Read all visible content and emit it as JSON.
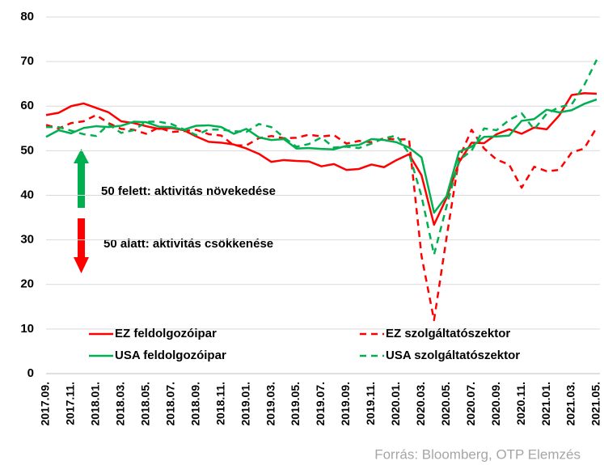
{
  "chart_data": {
    "type": "line",
    "categories": [
      "2017.09.",
      null,
      "2017.11.",
      null,
      "2018.01.",
      null,
      "2018.03.",
      null,
      "2018.05.",
      null,
      "2018.07.",
      null,
      "2018.09.",
      null,
      "2018.11.",
      null,
      "2019.01.",
      null,
      "2019.03.",
      null,
      "2019.05.",
      null,
      "2019.07.",
      null,
      "2019.09.",
      null,
      "2019.11.",
      null,
      "2020.01.",
      null,
      "2020.03.",
      null,
      "2020.05.",
      null,
      "2020.07.",
      null,
      "2020.09.",
      null,
      "2020.11.",
      null,
      "2021.01.",
      null,
      "2021.03.",
      null,
      "2021.05."
    ],
    "series": [
      {
        "name": "EZ feldolgozóipar",
        "color": "#ff0000",
        "dashed": false,
        "values": [
          58,
          58.5,
          60,
          60.6,
          59.6,
          58.6,
          56.6,
          56.2,
          55.5,
          54.9,
          55.1,
          54.6,
          53.2,
          52.0,
          51.8,
          51.4,
          50.5,
          49.3,
          47.5,
          47.9,
          47.7,
          47.6,
          46.5,
          47.0,
          45.7,
          45.9,
          46.9,
          46.3,
          47.9,
          49.2,
          44.5,
          33.4,
          39.4,
          47.4,
          51.8,
          51.7,
          53.7,
          54.8,
          53.8,
          55.2,
          54.8,
          57.9,
          62.5,
          62.9,
          62.8
        ]
      },
      {
        "name": "EZ szolgáltatószektor",
        "color": "#ff0000",
        "dashed": true,
        "values": [
          55.8,
          55.0,
          56.2,
          56.6,
          58.0,
          56.2,
          54.9,
          54.7,
          53.8,
          55.2,
          54.2,
          54.4,
          54.7,
          53.7,
          53.4,
          51.2,
          51.2,
          52.8,
          53.3,
          52.8,
          52.9,
          53.6,
          53.2,
          53.5,
          51.6,
          52.2,
          51.9,
          52.8,
          52.5,
          52.6,
          26.4,
          12.0,
          30.5,
          48.3,
          54.7,
          50.5,
          48.0,
          46.9,
          41.7,
          46.4,
          45.4,
          45.7,
          49.6,
          50.5,
          55.2
        ]
      },
      {
        "name": "USA feldolgozóipar",
        "color": "#00b050",
        "dashed": false,
        "values": [
          53.1,
          54.6,
          53.9,
          55.1,
          55.5,
          55.3,
          55.6,
          56.5,
          56.4,
          55.4,
          55.3,
          54.7,
          55.6,
          55.7,
          55.3,
          53.8,
          54.9,
          53.0,
          52.4,
          52.6,
          50.5,
          50.6,
          50.4,
          50.3,
          51.1,
          51.3,
          52.6,
          52.4,
          51.9,
          50.7,
          48.5,
          36.1,
          39.8,
          49.8,
          50.9,
          53.1,
          53.2,
          53.4,
          56.7,
          57.1,
          59.2,
          58.6,
          59.1,
          60.5,
          61.5
        ]
      },
      {
        "name": "USA szolgáltatószektor",
        "color": "#00b050",
        "dashed": true,
        "values": [
          55.3,
          55.3,
          54.5,
          53.7,
          53.3,
          55.9,
          54.0,
          54.6,
          56.5,
          56.5,
          56.0,
          54.8,
          53.5,
          54.8,
          54.7,
          54.4,
          54.2,
          56.0,
          55.3,
          53.0,
          50.9,
          51.5,
          53.0,
          50.7,
          50.9,
          50.6,
          51.6,
          52.8,
          53.4,
          49.4,
          39.8,
          26.7,
          37.5,
          47.9,
          50.0,
          55.0,
          54.6,
          56.9,
          58.4,
          54.8,
          58.3,
          59.8,
          60.4,
          64.7,
          70.4
        ]
      }
    ],
    "ylim": [
      0,
      80
    ],
    "yticks": [
      0,
      10,
      20,
      30,
      40,
      50,
      60,
      70,
      80
    ],
    "grid": true,
    "annotations": [
      "50 felett: aktivitás növekedése",
      "50 alatt: aktivitás csökkenése"
    ],
    "source": "Forrás: Bloomberg, OTP Elemzés"
  }
}
